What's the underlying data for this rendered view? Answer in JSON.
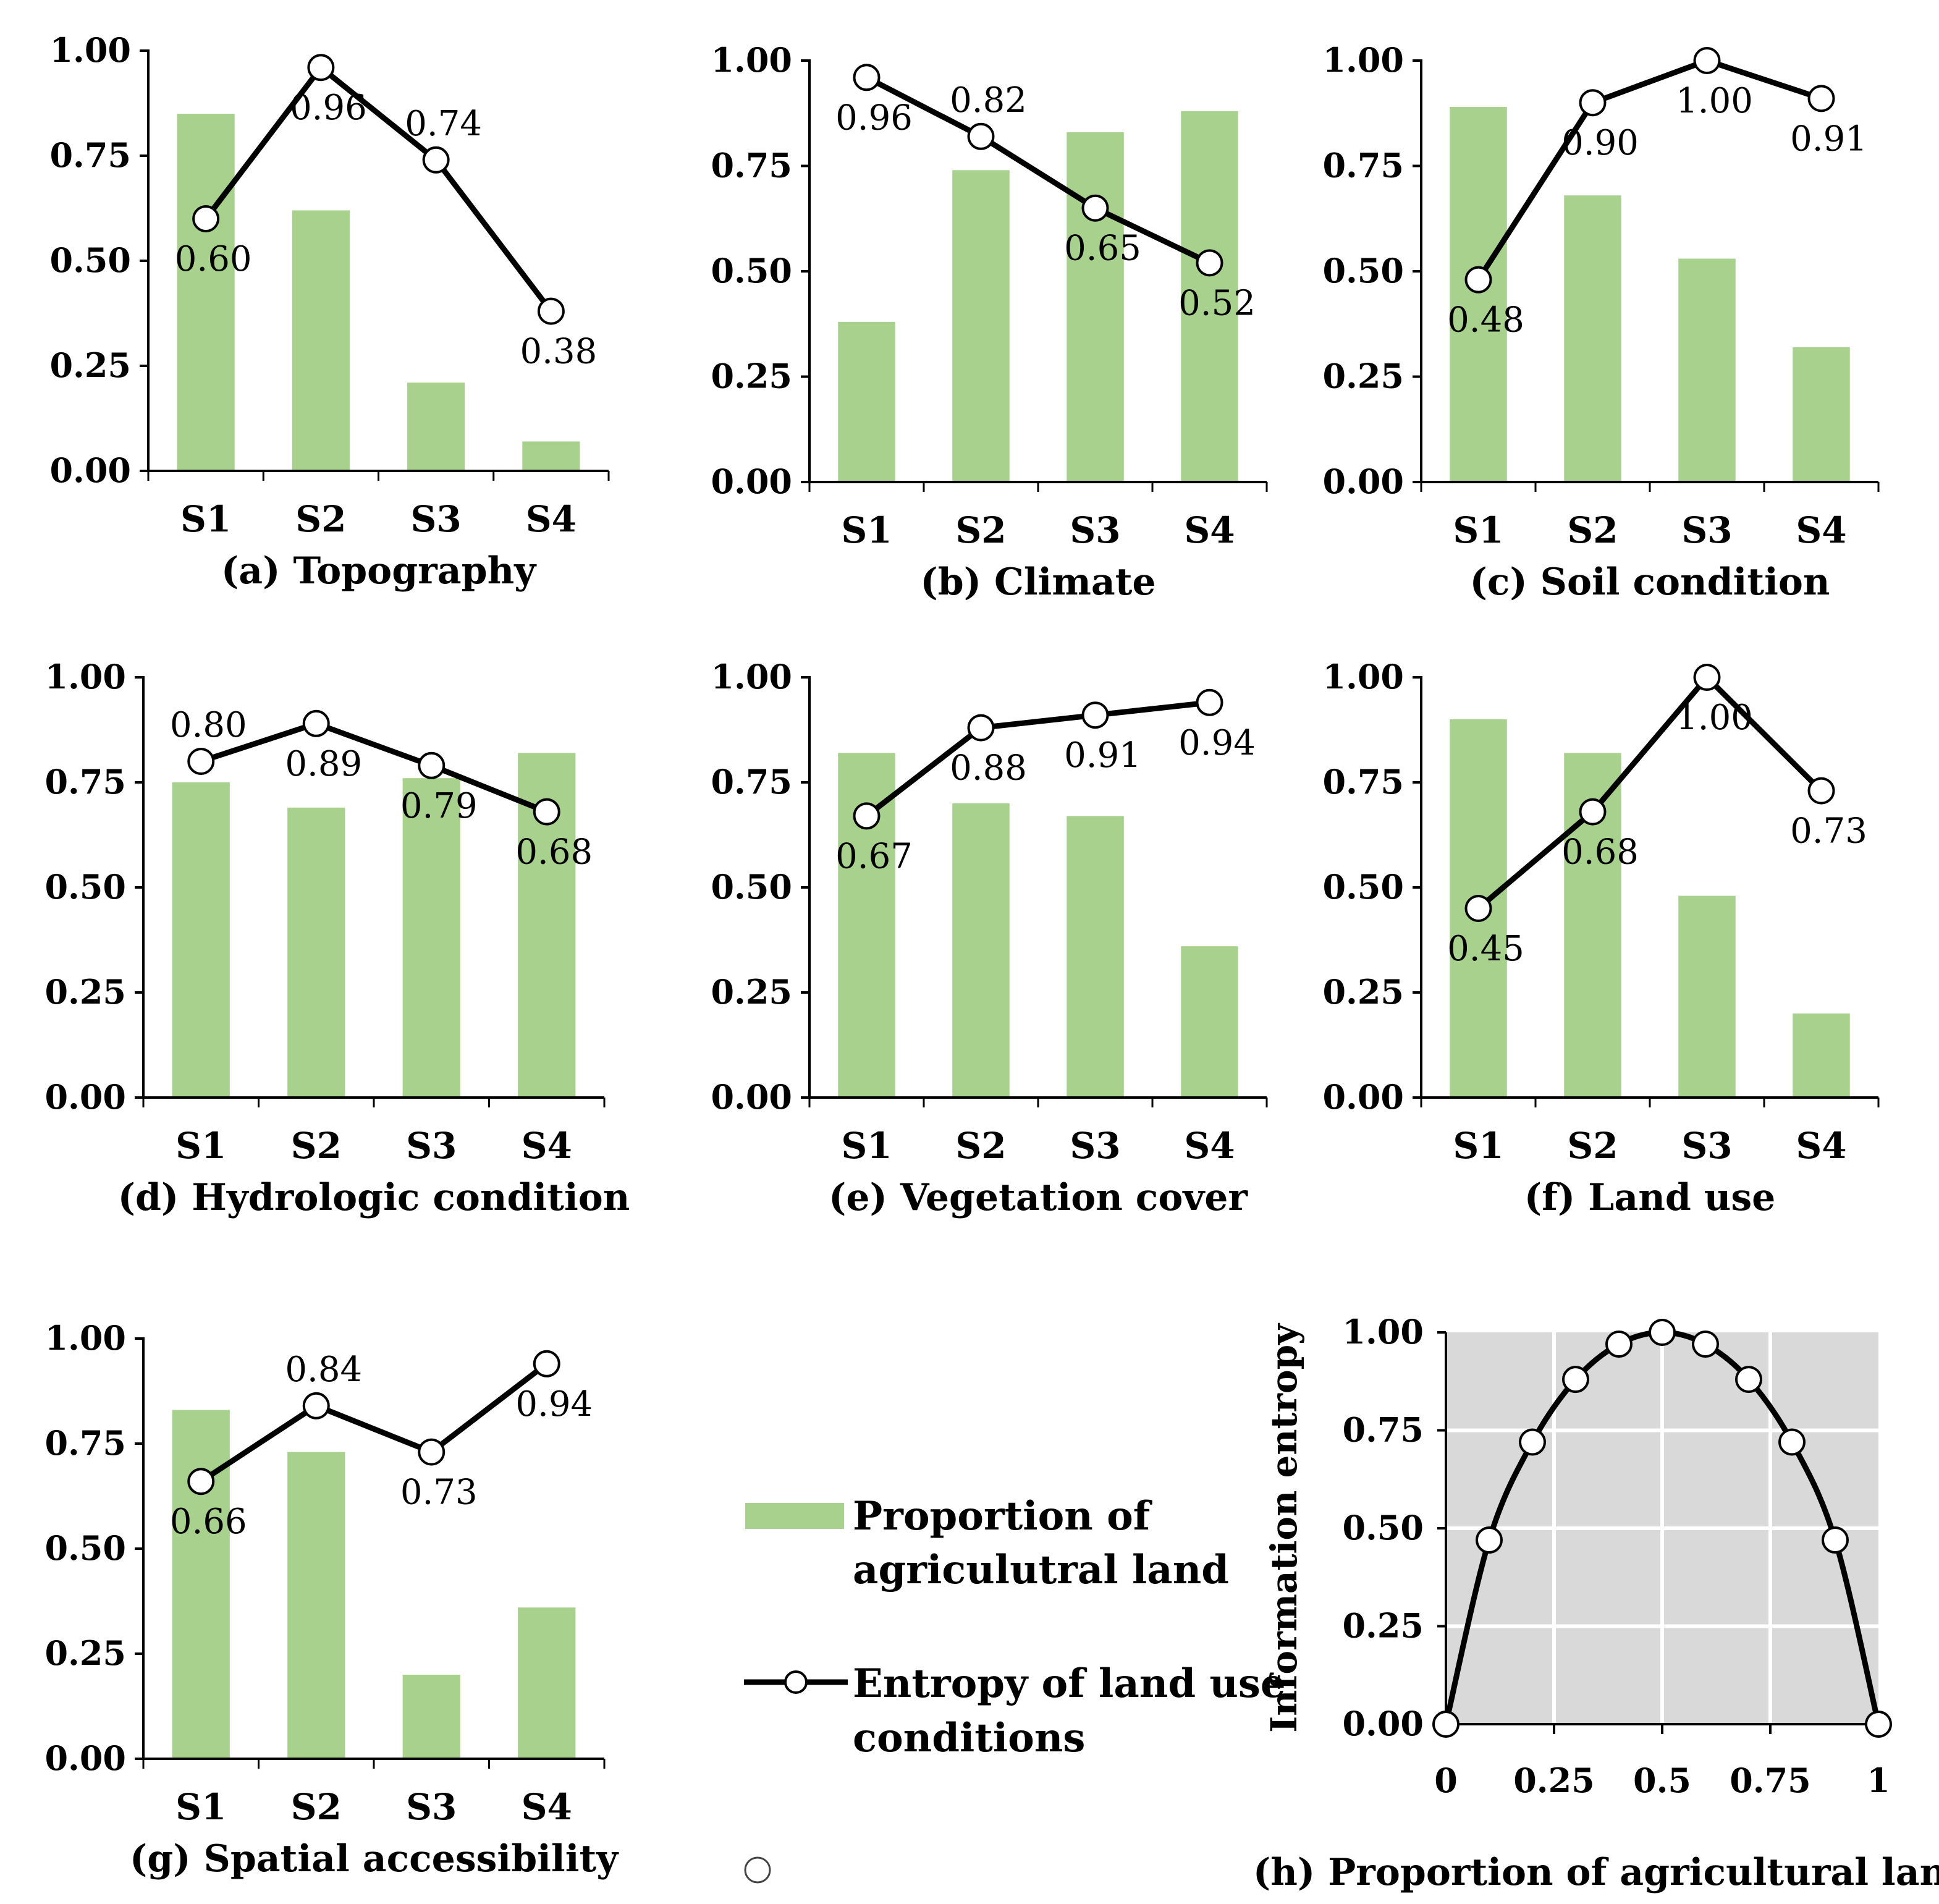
{
  "colors": {
    "bar": "#a9d18e",
    "line": "#000000",
    "marker_fill": "#ffffff",
    "plot_bg": "#d9d9d9",
    "grid": "#ffffff"
  },
  "legend": {
    "bar_label_line1": "Proportion of",
    "bar_label_line2": "agriculutral land",
    "line_label_line1": "Entropy of land use",
    "line_label_line2": "conditions"
  },
  "chart_data": [
    {
      "id": "a",
      "type": "bar+line",
      "caption": "(a) Topography",
      "categories": [
        "S1",
        "S2",
        "S3",
        "S4"
      ],
      "y_ticks": [
        "0.00",
        "0.25",
        "0.50",
        "0.75",
        "1.00"
      ],
      "ylim": [
        0,
        1
      ],
      "series": [
        {
          "name": "Proportion of agricultural land",
          "type": "bar",
          "values": [
            0.85,
            0.62,
            0.21,
            0.07
          ]
        },
        {
          "name": "Entropy of land use conditions",
          "type": "line",
          "values": [
            0.6,
            0.96,
            0.74,
            0.38
          ],
          "labels": [
            "0.60",
            "0.96",
            "0.74",
            "0.38"
          ],
          "label_pos": [
            "below",
            "below",
            "above",
            "below"
          ]
        }
      ]
    },
    {
      "id": "b",
      "type": "bar+line",
      "caption": "(b) Climate",
      "categories": [
        "S1",
        "S2",
        "S3",
        "S4"
      ],
      "y_ticks": [
        "0.00",
        "0.25",
        "0.50",
        "0.75",
        "1.00"
      ],
      "ylim": [
        0,
        1
      ],
      "series": [
        {
          "name": "Proportion of agricultural land",
          "type": "bar",
          "values": [
            0.38,
            0.74,
            0.83,
            0.88
          ]
        },
        {
          "name": "Entropy of land use conditions",
          "type": "line",
          "values": [
            0.96,
            0.82,
            0.65,
            0.52
          ],
          "labels": [
            "0.96",
            "0.82",
            "0.65",
            "0.52"
          ],
          "label_pos": [
            "below",
            "above",
            "below",
            "below"
          ]
        }
      ]
    },
    {
      "id": "c",
      "type": "bar+line",
      "caption": "(c) Soil condition",
      "categories": [
        "S1",
        "S2",
        "S3",
        "S4"
      ],
      "y_ticks": [
        "0.00",
        "0.25",
        "0.50",
        "0.75",
        "1.00"
      ],
      "ylim": [
        0,
        1
      ],
      "series": [
        {
          "name": "Proportion of agricultural land",
          "type": "bar",
          "values": [
            0.89,
            0.68,
            0.53,
            0.32
          ]
        },
        {
          "name": "Entropy of land use conditions",
          "type": "line",
          "values": [
            0.48,
            0.9,
            1.0,
            0.91
          ],
          "labels": [
            "0.48",
            "0.90",
            "1.00",
            "0.91"
          ],
          "label_pos": [
            "below",
            "below",
            "below",
            "below"
          ]
        }
      ]
    },
    {
      "id": "d",
      "type": "bar+line",
      "caption": "(d) Hydrologic condition",
      "categories": [
        "S1",
        "S2",
        "S3",
        "S4"
      ],
      "y_ticks": [
        "0.00",
        "0.25",
        "0.50",
        "0.75",
        "1.00"
      ],
      "ylim": [
        0,
        1
      ],
      "series": [
        {
          "name": "Proportion of agricultural land",
          "type": "bar",
          "values": [
            0.75,
            0.69,
            0.76,
            0.82
          ]
        },
        {
          "name": "Entropy of land use conditions",
          "type": "line",
          "values": [
            0.8,
            0.89,
            0.79,
            0.68
          ],
          "labels": [
            "0.80",
            "0.89",
            "0.79",
            "0.68"
          ],
          "label_pos": [
            "above",
            "below",
            "below",
            "below"
          ]
        }
      ]
    },
    {
      "id": "e",
      "type": "bar+line",
      "caption": "(e) Vegetation cover",
      "categories": [
        "S1",
        "S2",
        "S3",
        "S4"
      ],
      "y_ticks": [
        "0.00",
        "0.25",
        "0.50",
        "0.75",
        "1.00"
      ],
      "ylim": [
        0,
        1
      ],
      "series": [
        {
          "name": "Proportion of agricultural land",
          "type": "bar",
          "values": [
            0.82,
            0.7,
            0.67,
            0.36
          ]
        },
        {
          "name": "Entropy of land use conditions",
          "type": "line",
          "values": [
            0.67,
            0.88,
            0.91,
            0.94
          ],
          "labels": [
            "0.67",
            "0.88",
            "0.91",
            "0.94"
          ],
          "label_pos": [
            "below",
            "below",
            "below",
            "below"
          ]
        }
      ]
    },
    {
      "id": "f",
      "type": "bar+line",
      "caption": "(f) Land use",
      "categories": [
        "S1",
        "S2",
        "S3",
        "S4"
      ],
      "y_ticks": [
        "0.00",
        "0.25",
        "0.50",
        "0.75",
        "1.00"
      ],
      "ylim": [
        0,
        1
      ],
      "series": [
        {
          "name": "Proportion of agricultural land",
          "type": "bar",
          "values": [
            0.9,
            0.82,
            0.48,
            0.2
          ]
        },
        {
          "name": "Entropy of land use conditions",
          "type": "line",
          "values": [
            0.45,
            0.68,
            1.0,
            0.73
          ],
          "labels": [
            "0.45",
            "0.68",
            "1.00",
            "0.73"
          ],
          "label_pos": [
            "below",
            "below",
            "below",
            "below"
          ]
        }
      ]
    },
    {
      "id": "g",
      "type": "bar+line",
      "caption": "(g) Spatial accessibility",
      "categories": [
        "S1",
        "S2",
        "S3",
        "S4"
      ],
      "y_ticks": [
        "0.00",
        "0.25",
        "0.50",
        "0.75",
        "1.00"
      ],
      "ylim": [
        0,
        1
      ],
      "series": [
        {
          "name": "Proportion of agricultural land",
          "type": "bar",
          "values": [
            0.83,
            0.73,
            0.2,
            0.36
          ]
        },
        {
          "name": "Entropy of land use conditions",
          "type": "line",
          "values": [
            0.66,
            0.84,
            0.73,
            0.94
          ],
          "labels": [
            "0.66",
            "0.84",
            "0.73",
            "0.94"
          ],
          "label_pos": [
            "below",
            "above",
            "below",
            "below"
          ]
        }
      ]
    },
    {
      "id": "h",
      "type": "line",
      "caption": "(h) Proportion of agricultural land",
      "ylabel": "Information entropy",
      "x_ticks": [
        "0",
        "0.25",
        "0.5",
        "0.75",
        "1"
      ],
      "x_tick_values": [
        0,
        0.25,
        0.5,
        0.75,
        1
      ],
      "y_ticks": [
        "0.00",
        "0.25",
        "0.50",
        "0.75",
        "1.00"
      ],
      "xlim": [
        0,
        1
      ],
      "ylim": [
        0,
        1
      ],
      "grid": true,
      "x": [
        0,
        0.1,
        0.2,
        0.3,
        0.4,
        0.5,
        0.6,
        0.7,
        0.8,
        0.9,
        1.0
      ],
      "y": [
        0,
        0.47,
        0.72,
        0.88,
        0.97,
        1.0,
        0.97,
        0.88,
        0.72,
        0.47,
        0
      ]
    }
  ]
}
